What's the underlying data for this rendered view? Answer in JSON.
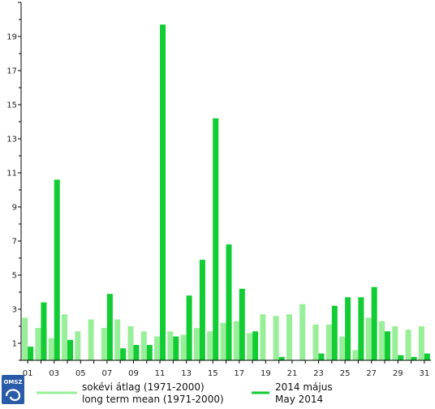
{
  "chart_data": {
    "type": "bar",
    "title": "",
    "xlabel": "",
    "ylabel": "",
    "ylim": [
      0,
      21
    ],
    "grid": false,
    "legend_position": "bottom",
    "x": [
      1,
      2,
      3,
      4,
      5,
      6,
      7,
      8,
      9,
      10,
      11,
      12,
      13,
      14,
      15,
      16,
      17,
      18,
      19,
      20,
      21,
      22,
      23,
      24,
      25,
      26,
      27,
      28,
      29,
      30,
      31
    ],
    "x_tick_labels": [
      "01",
      "03",
      "05",
      "07",
      "09",
      "11",
      "13",
      "15",
      "17",
      "19",
      "21",
      "23",
      "25",
      "27",
      "29",
      "31"
    ],
    "y_ticks": [
      1,
      3,
      5,
      7,
      9,
      11,
      13,
      15,
      17,
      19
    ],
    "series": [
      {
        "name": "sokévi átlag (1971-2000)",
        "name_en": "long term mean (1971-2000)",
        "color": "#99ee99",
        "values": [
          2.5,
          1.9,
          1.3,
          2.7,
          1.7,
          2.4,
          1.9,
          2.4,
          2.0,
          1.7,
          1.4,
          1.7,
          1.5,
          1.9,
          1.7,
          2.2,
          2.3,
          1.6,
          2.7,
          2.6,
          2.7,
          3.3,
          2.1,
          2.1,
          1.4,
          0.6,
          2.5,
          2.3,
          2.0,
          1.8,
          2.0
        ]
      },
      {
        "name": "2014 május",
        "name_en": "May 2014",
        "color": "#11cc33",
        "values": [
          0.8,
          3.4,
          10.6,
          1.2,
          0.0,
          0.0,
          3.9,
          0.7,
          0.9,
          0.9,
          19.7,
          1.4,
          3.8,
          5.9,
          14.2,
          6.8,
          4.2,
          1.7,
          0.0,
          0.2,
          0.0,
          0.0,
          0.4,
          3.2,
          3.7,
          3.7,
          4.3,
          1.7,
          0.3,
          0.2,
          0.4
        ]
      }
    ]
  },
  "logo": {
    "text": "OMSZ",
    "color": "#2a5ba8"
  }
}
